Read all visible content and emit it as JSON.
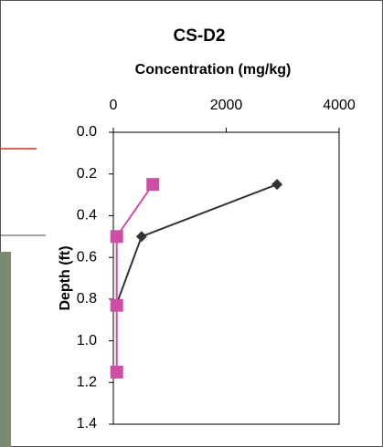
{
  "chart_data": {
    "type": "line",
    "title": "CS-D2",
    "x_label": "Concentration (mg/kg)",
    "y_label": "Depth (ft)",
    "xlim": [
      0,
      4000
    ],
    "xticks": [
      0,
      2000,
      4000
    ],
    "ylim": [
      0,
      1.4
    ],
    "yticks": [
      {
        "value": 0,
        "label": "0.0"
      },
      0.2,
      0.4,
      0.6,
      0.8,
      {
        "value": 1,
        "label": "1.0"
      },
      1.2,
      1.4
    ],
    "y_inverted": true,
    "series": [
      {
        "name": null,
        "color": "#333333",
        "marker": "diamond",
        "x": [
          2900,
          500,
          50
        ],
        "values": [
          0.25,
          0.5,
          0.83
        ]
      },
      {
        "name": null,
        "color": "#cc4fa6",
        "marker": "square",
        "x": [
          700,
          60,
          60,
          60
        ],
        "values": [
          0.25,
          0.5,
          0.83,
          1.15
        ]
      }
    ]
  }
}
